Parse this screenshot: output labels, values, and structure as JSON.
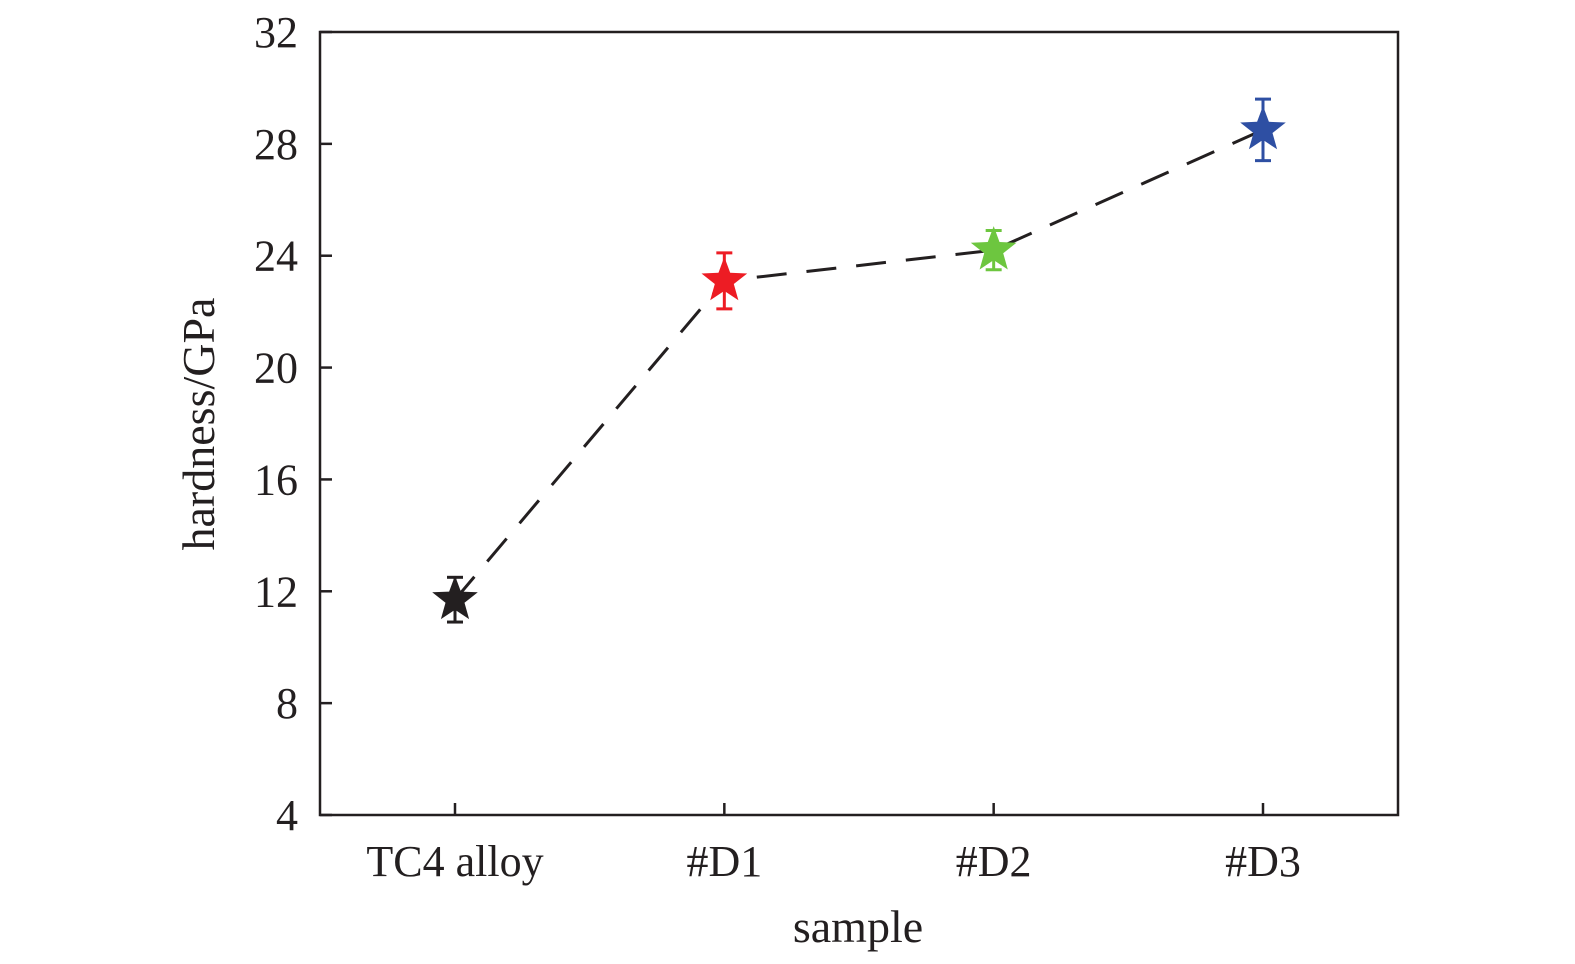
{
  "chart_data": {
    "type": "scatter",
    "title": "",
    "xlabel": "sample",
    "ylabel": "hardness/GPa",
    "categories": [
      "TC4 alloy",
      "#D1",
      "#D2",
      "#D3"
    ],
    "series": [
      {
        "values": [
          11.7,
          23.1,
          24.2,
          28.5
        ],
        "errors": [
          0.8,
          1.0,
          0.7,
          1.1
        ],
        "colors": [
          "#231f20",
          "#ed1c24",
          "#6dc63f",
          "#2e4fa3"
        ],
        "marker": "star",
        "line": "dashed"
      }
    ],
    "ylim": [
      4,
      32
    ],
    "yticks": [
      "4",
      "8",
      "12",
      "16",
      "20",
      "24",
      "28",
      "32"
    ],
    "grid": false,
    "legend": "none"
  }
}
